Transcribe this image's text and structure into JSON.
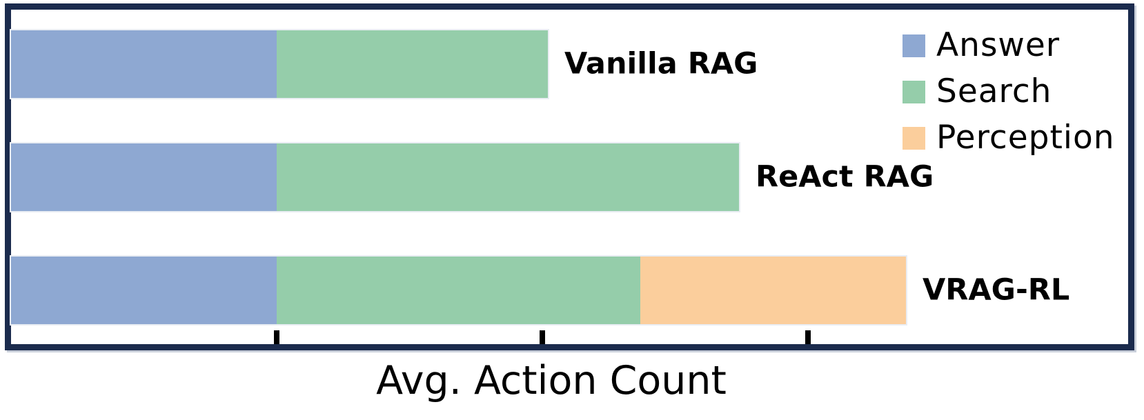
{
  "colors": {
    "answer": "#8EA8D2",
    "search": "#95CDAA",
    "perception": "#FBCE9C",
    "frame": "#1B2B4D",
    "frame_shadow": "#C9CFDA",
    "bar_edge": "#E9EDF3",
    "tick": "#000000",
    "text": "#000000"
  },
  "chart_data": {
    "type": "bar",
    "orientation": "horizontal",
    "stacked": true,
    "title": "",
    "xlabel": "Avg. Action Count",
    "ylabel": "",
    "categories": [
      "Vanilla RAG",
      "ReAct RAG",
      "VRAG-RL"
    ],
    "series": [
      {
        "name": "Answer",
        "color_key": "answer",
        "values": [
          1.0,
          1.0,
          1.0
        ]
      },
      {
        "name": "Search",
        "color_key": "search",
        "values": [
          1.02,
          1.74,
          1.37
        ]
      },
      {
        "name": "Perception",
        "color_key": "perception",
        "values": [
          0,
          0,
          1.0
        ]
      }
    ],
    "totals": [
      2.02,
      2.74,
      3.37
    ],
    "x_ticks": [
      1,
      2,
      3
    ],
    "x_tick_labels_visible": false,
    "xlim": [
      0,
      4.2
    ],
    "grid": false,
    "legend_position": "upper right",
    "bar_labels_position": "right of bar",
    "legend_labels": [
      "Answer",
      "Search",
      "Perception"
    ]
  }
}
